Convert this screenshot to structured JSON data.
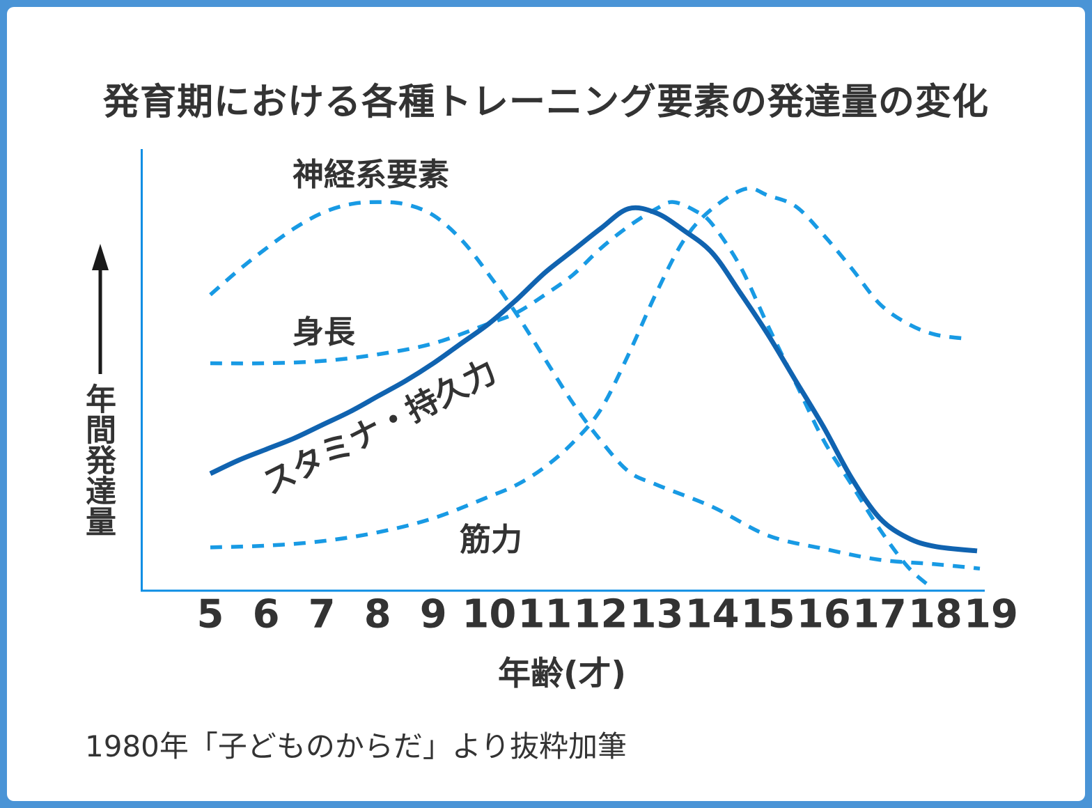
{
  "title": "発育期における各種トレーニング要素の発達量の変化",
  "source_note": "1980年「子どものからだ」より抜粋加筆",
  "y_axis": {
    "label": "年間発達量"
  },
  "x_axis": {
    "label": "年齢(才)"
  },
  "colors": {
    "frame": "#4a94d6",
    "axis": "#0d8ee4",
    "dashed_curve": "#189ae4",
    "solid_curve": "#1063b0",
    "text": "#333333",
    "arrow": "#1a1a1a"
  },
  "chart_data": {
    "type": "line",
    "title": "発育期における各種トレーニング要素の発達量の変化",
    "xlabel": "年齢(才)",
    "ylabel": "年間発達量",
    "x_range": [
      5,
      19
    ],
    "ylim": [
      0,
      100
    ],
    "grid": false,
    "legend_position": "inline-annotations",
    "x_ticks": [
      5,
      6,
      7,
      8,
      9,
      10,
      11,
      12,
      13,
      14,
      15,
      16,
      17,
      18,
      19
    ],
    "y_unit": "relative annual development (unlabeled axis, 0-100 estimated)",
    "series": [
      {
        "name": "神経系要素",
        "style": "dashed",
        "x": [
          5,
          5.5,
          6,
          6.5,
          7,
          7.5,
          8,
          8.5,
          9,
          9.5,
          10,
          10.5,
          11,
          11.5,
          12,
          12.5,
          13,
          14,
          15,
          16,
          17,
          18,
          18.8
        ],
        "y": [
          67,
          72.5,
          77.5,
          82,
          85.5,
          87.5,
          88,
          87.5,
          85,
          79.5,
          71.5,
          62.5,
          52.5,
          42.5,
          34,
          27,
          24,
          19,
          12.5,
          9.5,
          7,
          6,
          5
        ]
      },
      {
        "name": "身長",
        "style": "dashed",
        "x": [
          5,
          6,
          7,
          8,
          9,
          10,
          10.5,
          11,
          11.5,
          12,
          12.5,
          13,
          13.3,
          13.7,
          14,
          14.5,
          15,
          15.5,
          16,
          16.5,
          17,
          17.5,
          17.9
        ],
        "y": [
          51.5,
          51.5,
          52,
          53.5,
          56,
          60.5,
          63,
          67,
          71.5,
          77.5,
          82.5,
          86.5,
          88,
          86,
          83,
          73.5,
          60,
          47,
          34,
          24,
          14,
          5.5,
          1
        ]
      },
      {
        "name": "スタミナ・持久力",
        "style": "solid",
        "x": [
          5,
          5.5,
          6,
          6.5,
          7,
          7.5,
          8,
          8.5,
          9,
          9.5,
          10,
          10.5,
          11,
          11.5,
          12,
          12.5,
          13,
          13.5,
          14,
          14.5,
          15,
          15.5,
          16,
          16.5,
          17,
          17.5,
          18,
          18.75
        ],
        "y": [
          26.5,
          29.5,
          32,
          34.5,
          37.5,
          40.5,
          44,
          47.5,
          51.5,
          56,
          60.5,
          66,
          72,
          77,
          82,
          86.5,
          85.5,
          81.5,
          76.5,
          67.5,
          58,
          47.5,
          37,
          25.5,
          16.5,
          12,
          10,
          9
        ]
      },
      {
        "name": "筋力",
        "style": "dashed",
        "x": [
          5,
          6,
          7,
          8,
          9,
          10,
          10.5,
          11,
          11.5,
          12,
          12.5,
          13,
          13.5,
          14,
          14.6,
          15,
          15.5,
          16,
          16.5,
          17,
          17.5,
          18,
          18.6
        ],
        "y": [
          9.8,
          10.2,
          11.2,
          13.2,
          16.4,
          21.3,
          24,
          28,
          33.5,
          41,
          53.5,
          67.5,
          79.5,
          86.5,
          91,
          89.5,
          87,
          80.5,
          73,
          65,
          60.5,
          58,
          57
        ]
      }
    ]
  }
}
